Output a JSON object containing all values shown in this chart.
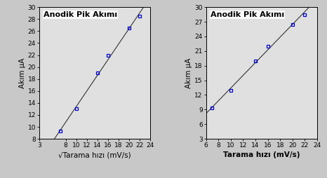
{
  "left": {
    "x": [
      7,
      10,
      14,
      16,
      20,
      22
    ],
    "y": [
      9.3,
      13.0,
      19.0,
      22.0,
      26.5,
      28.5
    ],
    "xlabel": "√Tarama hızı (mV/s)",
    "ylabel": "Akım μA",
    "title": "Anodik Pik Akımı",
    "xlim": [
      3,
      24
    ],
    "ylim": [
      8,
      30
    ],
    "xticks": [
      3,
      8,
      10,
      12,
      14,
      16,
      18,
      20,
      22,
      24
    ],
    "yticks": [
      8,
      10,
      12,
      14,
      16,
      18,
      20,
      22,
      24,
      26,
      28,
      30
    ]
  },
  "right": {
    "x": [
      7,
      10,
      14,
      16,
      20,
      22
    ],
    "y": [
      9.3,
      13.0,
      19.0,
      22.0,
      26.5,
      28.5
    ],
    "xlabel": "Tarama hızı (mV/s)",
    "ylabel": "Akım μA",
    "title": "Anodik Pik Akımı",
    "xlim": [
      6,
      24
    ],
    "ylim": [
      3,
      30
    ],
    "xticks": [
      6,
      8,
      10,
      12,
      14,
      16,
      18,
      20,
      22,
      24
    ],
    "yticks": [
      3,
      6,
      9,
      12,
      15,
      18,
      21,
      24,
      27,
      30
    ]
  },
  "line_color": "#333333",
  "marker_color": "#0000CC",
  "marker_edge_color": "#0000CC",
  "bg_color": "#C8C8C8",
  "plot_bg_color": "#E0E0E0",
  "title_fontsize": 8,
  "label_fontsize": 7.5,
  "tick_fontsize": 6.5
}
